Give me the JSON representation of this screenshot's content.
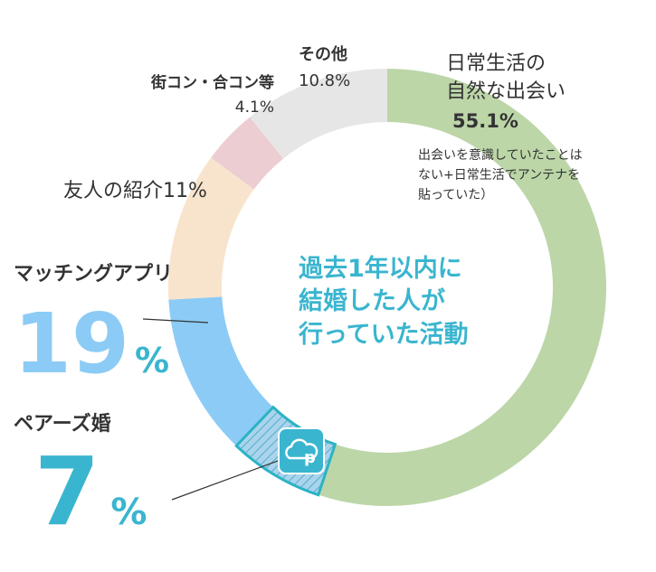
{
  "chart_data": {
    "type": "donut",
    "labels": [
      [
        "日常生活の",
        "自然な出会い"
      ],
      [
        "マッチングアプリ"
      ],
      [
        "友人の紹介"
      ],
      [
        "街コン・合コン等"
      ],
      [
        "その他"
      ]
    ],
    "values": [
      55.1,
      19,
      11,
      4.1,
      10.8
    ],
    "value_labels": [
      "55.1%",
      "19",
      "11%",
      "4.1%",
      "10.8%"
    ],
    "colors": [
      "#bcd6a8",
      "#8ccbf5",
      "#f8e4cc",
      "#eccdd1",
      "#e6e6e6"
    ],
    "center_title": [
      "過去1年以内に",
      "結婚した人が",
      "行っていた活動"
    ],
    "note": [
      "出会いを意識していたことは",
      "ない+日常生活でアンテナを",
      "貼っていた）"
    ],
    "unit": "%",
    "highlight": {
      "name": "ペアーズ婚",
      "value": 7,
      "value_label": "7",
      "within": 1,
      "color": "#a9d4ec",
      "edge_color": "#2bb3c4"
    }
  }
}
